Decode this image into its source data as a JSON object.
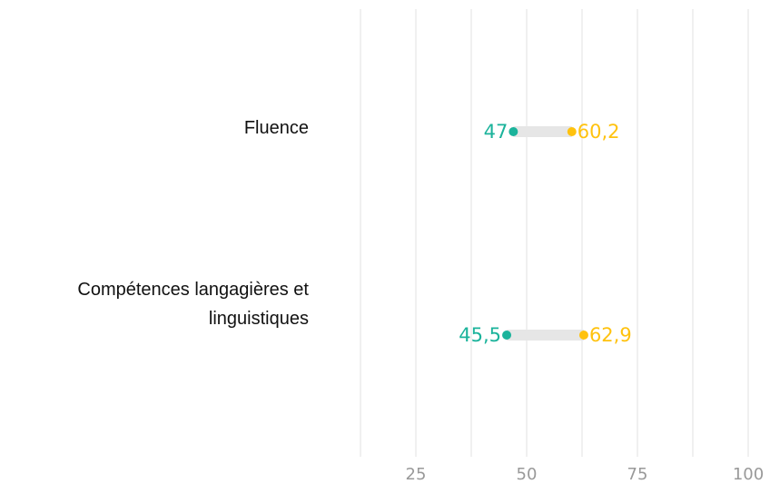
{
  "chart_data": {
    "type": "dumbbell",
    "categories": [
      "Fluence",
      "Compétences langagières et linguistiques"
    ],
    "series": [
      {
        "color": "#1bb39b",
        "values": [
          47,
          45.5
        ],
        "value_labels": [
          "47",
          "45,5"
        ]
      },
      {
        "color": "#ffc20e",
        "values": [
          60.2,
          62.9
        ],
        "value_labels": [
          "60,2",
          "62,9"
        ]
      }
    ],
    "xlim": [
      12.5,
      100
    ],
    "xticks": [
      25,
      50,
      75,
      100
    ],
    "minor_xticks": [
      12.5,
      37.5,
      62.5,
      87.5
    ],
    "grid": true,
    "connector_color": "#e6e6e6"
  }
}
